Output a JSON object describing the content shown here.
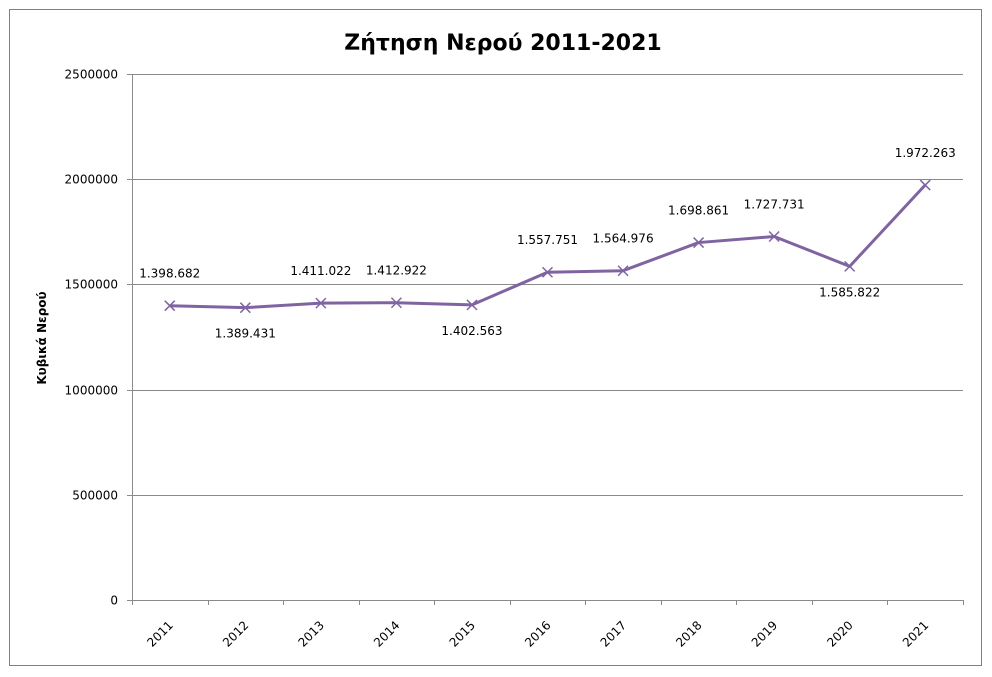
{
  "chart_data": {
    "type": "line",
    "title": "Ζήτηση Νερού 2011-2021",
    "xlabel": "",
    "ylabel": "Κυβικά Νερού",
    "categories": [
      "2011",
      "2012",
      "2013",
      "2014",
      "2015",
      "2016",
      "2017",
      "2018",
      "2019",
      "2020",
      "2021"
    ],
    "series": [
      {
        "values": [
          1398682,
          1389431,
          1411022,
          1412922,
          1402563,
          1557751,
          1564976,
          1698861,
          1727731,
          1585822,
          1972263
        ],
        "data_labels": [
          "1.398.682",
          "1.389.431",
          "1.411.022",
          "1.412.922",
          "1.402.563",
          "1.557.751",
          "1.564.976",
          "1.698.861",
          "1.727.731",
          "1.585.822",
          "1.972.263"
        ],
        "color": "#8064a2",
        "marker": "x"
      }
    ],
    "ylim": [
      0,
      2500000
    ],
    "yticks": [
      "0",
      "500000",
      "1000000",
      "1500000",
      "2000000",
      "2500000"
    ],
    "grid": true,
    "legend": "none"
  }
}
